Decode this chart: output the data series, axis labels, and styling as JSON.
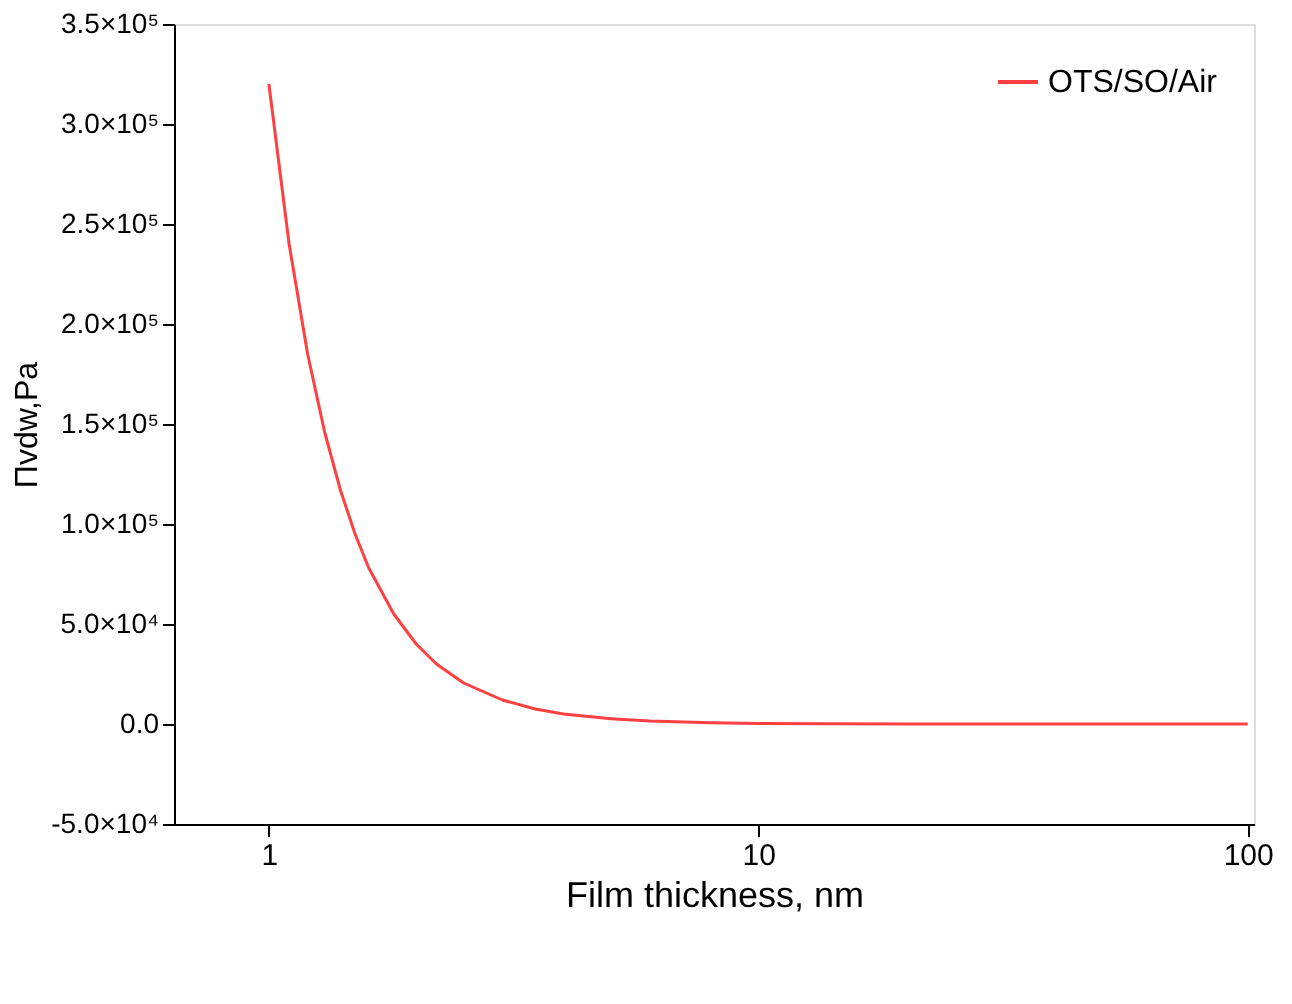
{
  "chart_data": {
    "type": "line",
    "xlabel": "Film thickness, nm",
    "ylabel": "Πvdw,Pa",
    "x": [
      1,
      1.1,
      1.2,
      1.3,
      1.4,
      1.5,
      1.6,
      1.8,
      2,
      2.2,
      2.5,
      3,
      3.5,
      4,
      5,
      6,
      8,
      10,
      20,
      50,
      100
    ],
    "series": [
      {
        "name": "OTS/SO/Air",
        "color": "#ff4040",
        "values": [
          320000,
          240000,
          185000,
          146000,
          117000,
          95000,
          78000,
          55000,
          40000,
          30000,
          20500,
          12000,
          7500,
          5000,
          2600,
          1500,
          600,
          300,
          40,
          0,
          0
        ]
      }
    ],
    "log": "x",
    "xlim": [
      0.64,
      103
    ],
    "xticks": [
      1,
      10,
      100
    ],
    "ylim": [
      -50000,
      350000
    ],
    "yticks": [
      {
        "value": -50000,
        "label": "-5.0×10⁴"
      },
      {
        "value": 0,
        "label": "0.0"
      },
      {
        "value": 50000,
        "label": "5.0×10⁴"
      },
      {
        "value": 100000,
        "label": "1.0×10⁵"
      },
      {
        "value": 150000,
        "label": "1.5×10⁵"
      },
      {
        "value": 200000,
        "label": "2.0×10⁵"
      },
      {
        "value": 250000,
        "label": "2.5×10⁵"
      },
      {
        "value": 300000,
        "label": "3.0×10⁵"
      },
      {
        "value": 350000,
        "label": "3.5×10⁵"
      }
    ],
    "grid": false,
    "legend": "top right",
    "marker": "none",
    "line_style": "solid"
  }
}
